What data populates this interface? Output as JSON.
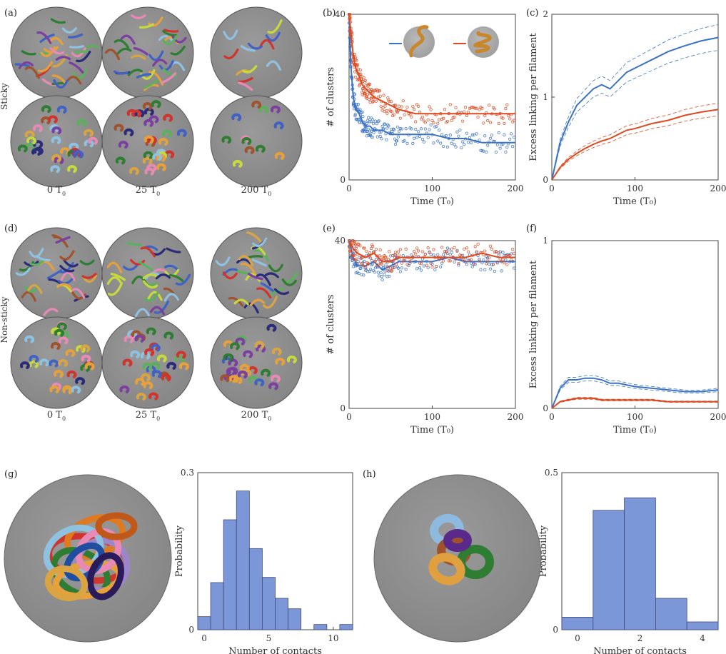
{
  "panel_labels": [
    "(a)",
    "(b)",
    "(c)",
    "(d)",
    "(e)",
    "(f)",
    "(g)",
    "(h)"
  ],
  "row_labels": {
    "sticky": "Sticky",
    "nonsticky": "Non-sticky"
  },
  "snapshot_times": [
    "0",
    "25",
    "200"
  ],
  "time_unit": "T",
  "time_unit_sub": "0",
  "colors": {
    "blue": "#3a72c4",
    "red": "#dd4a20",
    "hist": "#7c97d8",
    "disk": "#8a8a8a"
  },
  "chart_data": [
    {
      "id": "b",
      "type": "scatter",
      "xlabel": "Time (T₀)",
      "ylabel": "# of clusters",
      "xlim": [
        0,
        200
      ],
      "ylim": [
        0,
        40
      ],
      "xticks": [
        "0",
        "100",
        "200"
      ],
      "yticks": [
        "0",
        "40"
      ],
      "series": [
        {
          "color": "blue",
          "x": [
            0,
            2,
            5,
            8,
            12,
            16,
            20,
            25,
            30,
            40,
            50,
            60,
            80,
            100,
            120,
            140,
            160,
            180,
            200
          ],
          "y": [
            40,
            28,
            20,
            17,
            16,
            14,
            13,
            13,
            12,
            12,
            11,
            11,
            11,
            11,
            10,
            10,
            9,
            9,
            9
          ]
        },
        {
          "color": "red",
          "x": [
            0,
            2,
            5,
            8,
            12,
            16,
            20,
            25,
            30,
            40,
            50,
            60,
            80,
            100,
            120,
            140,
            160,
            180,
            200
          ],
          "y": [
            40,
            36,
            30,
            27,
            25,
            23,
            22,
            21,
            20,
            19,
            18,
            17,
            16,
            16,
            16,
            16,
            16,
            16,
            16
          ]
        }
      ]
    },
    {
      "id": "c",
      "type": "line",
      "xlabel": "Time (T₀)",
      "ylabel": "Excess linking per filament",
      "xlim": [
        0,
        200
      ],
      "ylim": [
        0,
        2
      ],
      "xticks": [
        "0",
        "100",
        "200"
      ],
      "yticks": [
        "0",
        "1",
        "2"
      ],
      "series": [
        {
          "color": "blue",
          "x": [
            0,
            10,
            20,
            30,
            40,
            50,
            60,
            70,
            80,
            90,
            100,
            120,
            140,
            160,
            180,
            200
          ],
          "y": [
            0,
            0.45,
            0.7,
            0.9,
            1.0,
            1.1,
            1.15,
            1.1,
            1.2,
            1.3,
            1.35,
            1.45,
            1.55,
            1.62,
            1.68,
            1.72
          ]
        },
        {
          "color": "red",
          "x": [
            0,
            10,
            20,
            30,
            40,
            50,
            60,
            70,
            80,
            90,
            100,
            120,
            140,
            160,
            180,
            200
          ],
          "y": [
            0,
            0.15,
            0.25,
            0.32,
            0.38,
            0.43,
            0.47,
            0.5,
            0.55,
            0.6,
            0.62,
            0.68,
            0.72,
            0.78,
            0.82,
            0.85
          ]
        }
      ]
    },
    {
      "id": "e",
      "type": "scatter",
      "xlabel": "Time (T₀)",
      "ylabel": "# of clusters",
      "xlim": [
        0,
        200
      ],
      "ylim": [
        0,
        40
      ],
      "xticks": [
        "0",
        "100",
        "200"
      ],
      "yticks": [
        "0",
        "40"
      ],
      "series": [
        {
          "color": "blue",
          "x": [
            0,
            5,
            10,
            20,
            30,
            40,
            50,
            60,
            80,
            100,
            120,
            140,
            160,
            180,
            200
          ],
          "y": [
            40,
            36,
            34,
            34,
            35,
            33,
            34,
            35,
            35,
            35,
            36,
            35,
            35,
            35,
            35
          ]
        },
        {
          "color": "red",
          "x": [
            0,
            5,
            10,
            20,
            30,
            40,
            50,
            60,
            80,
            100,
            120,
            140,
            160,
            180,
            200
          ],
          "y": [
            40,
            38,
            37,
            36,
            37,
            35,
            35,
            36,
            36,
            36,
            36,
            36,
            37,
            36,
            36
          ]
        }
      ]
    },
    {
      "id": "f",
      "type": "line",
      "xlabel": "Time (T₀)",
      "ylabel": "Excess linking per filament",
      "xlim": [
        0,
        200
      ],
      "ylim": [
        0,
        1
      ],
      "xticks": [
        "0",
        "100",
        "200"
      ],
      "yticks": [
        "0",
        "1"
      ],
      "series": [
        {
          "color": "blue",
          "x": [
            0,
            10,
            20,
            30,
            40,
            50,
            60,
            70,
            80,
            100,
            120,
            140,
            160,
            180,
            200
          ],
          "y": [
            0,
            0.12,
            0.17,
            0.17,
            0.18,
            0.18,
            0.17,
            0.15,
            0.15,
            0.13,
            0.12,
            0.11,
            0.1,
            0.1,
            0.11
          ]
        },
        {
          "color": "red",
          "x": [
            0,
            10,
            20,
            30,
            40,
            50,
            60,
            70,
            80,
            100,
            120,
            140,
            160,
            180,
            200
          ],
          "y": [
            0,
            0.04,
            0.05,
            0.06,
            0.06,
            0.06,
            0.05,
            0.05,
            0.05,
            0.05,
            0.05,
            0.04,
            0.04,
            0.04,
            0.04
          ]
        }
      ]
    },
    {
      "id": "g",
      "type": "bar",
      "xlabel": "Number of contacts",
      "ylabel": "Probability",
      "xlim": [
        -0.5,
        11.5
      ],
      "ylim": [
        0,
        0.3
      ],
      "xticks": [
        "0",
        "5",
        "10"
      ],
      "yticks": [
        "0",
        "0.3"
      ],
      "categories": [
        0,
        1,
        2,
        3,
        4,
        5,
        6,
        7,
        8,
        9,
        10,
        11
      ],
      "values": [
        0.025,
        0.09,
        0.21,
        0.265,
        0.155,
        0.1,
        0.06,
        0.04,
        0.0,
        0.01,
        0.0,
        0.01
      ]
    },
    {
      "id": "h",
      "type": "bar",
      "xlabel": "Number of contacts",
      "ylabel": "Probability",
      "xlim": [
        -0.5,
        4.5
      ],
      "ylim": [
        0,
        0.5
      ],
      "xticks": [
        "0",
        "2",
        "4"
      ],
      "yticks": [
        "0",
        "0.5"
      ],
      "categories": [
        0,
        1,
        2,
        3,
        4
      ],
      "values": [
        0.04,
        0.38,
        0.42,
        0.1,
        0.025
      ]
    }
  ]
}
